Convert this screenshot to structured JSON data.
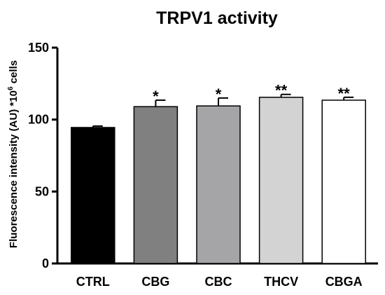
{
  "chart_data": {
    "type": "bar",
    "title": "TRPV1 activity",
    "ylabel": "Fluorescence intensity (AU) *10",
    "ylabel_sup": "6",
    "ylabel_suffix": " cells",
    "xlabel": "",
    "ylim": [
      0,
      150
    ],
    "yticks": [
      0,
      50,
      100,
      150
    ],
    "categories": [
      "CTRL",
      "CBG",
      "CBC",
      "THCV",
      "CBGA"
    ],
    "values": [
      94.5,
      109,
      109.5,
      115.5,
      113.5
    ],
    "errors": [
      1,
      4.5,
      5.5,
      2,
      2
    ],
    "significance": [
      "",
      "*",
      "*",
      "**",
      "**"
    ],
    "colors": [
      "#000000",
      "#808080",
      "#a5a5a8",
      "#d3d3d3",
      "#ffffff"
    ],
    "grid": false
  }
}
